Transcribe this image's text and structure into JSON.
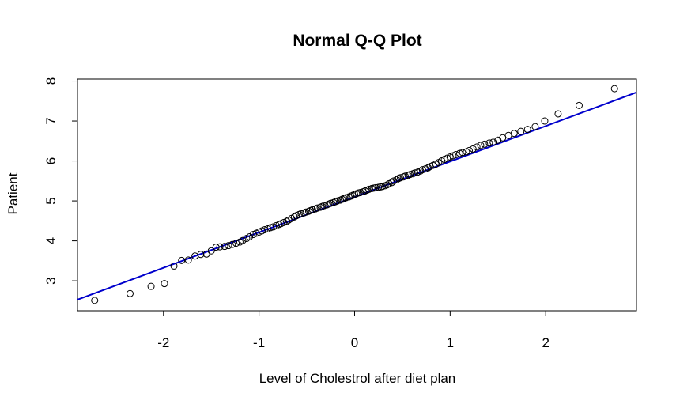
{
  "chart_data": {
    "type": "scatter",
    "title": "Normal Q-Q Plot",
    "xlabel": "Level of Cholestrol after diet plan",
    "ylabel": "Patient",
    "xlim": [
      -2.9,
      2.95
    ],
    "ylim": [
      2.25,
      8.05
    ],
    "x_ticks": [
      -2,
      -1,
      0,
      1,
      2
    ],
    "y_ticks": [
      3,
      4,
      5,
      6,
      7,
      8
    ],
    "grid": false,
    "legend": "none",
    "point_color": "#000000",
    "line_color": "#0000cc",
    "reference_line": {
      "intercept": 5.1,
      "slope": 0.887
    },
    "points": [
      [
        -2.72,
        2.51
      ],
      [
        -2.35,
        2.68
      ],
      [
        -2.13,
        2.86
      ],
      [
        -1.99,
        2.93
      ],
      [
        -1.89,
        3.37
      ],
      [
        -1.81,
        3.51
      ],
      [
        -1.74,
        3.52
      ],
      [
        -1.67,
        3.62
      ],
      [
        -1.61,
        3.66
      ],
      [
        -1.55,
        3.67
      ],
      [
        -1.5,
        3.75
      ],
      [
        -1.45,
        3.84
      ],
      [
        -1.41,
        3.85
      ],
      [
        -1.36,
        3.86
      ],
      [
        -1.32,
        3.88
      ],
      [
        -1.28,
        3.91
      ],
      [
        -1.24,
        3.94
      ],
      [
        -1.2,
        3.97
      ],
      [
        -1.17,
        4.01
      ],
      [
        -1.13,
        4.06
      ],
      [
        -1.1,
        4.1
      ],
      [
        -1.06,
        4.16
      ],
      [
        -1.03,
        4.19
      ],
      [
        -1.0,
        4.22
      ],
      [
        -0.97,
        4.25
      ],
      [
        -0.94,
        4.28
      ],
      [
        -0.91,
        4.3
      ],
      [
        -0.88,
        4.33
      ],
      [
        -0.85,
        4.35
      ],
      [
        -0.82,
        4.38
      ],
      [
        -0.79,
        4.41
      ],
      [
        -0.77,
        4.43
      ],
      [
        -0.74,
        4.46
      ],
      [
        -0.71,
        4.49
      ],
      [
        -0.69,
        4.52
      ],
      [
        -0.66,
        4.56
      ],
      [
        -0.63,
        4.6
      ],
      [
        -0.61,
        4.63
      ],
      [
        -0.58,
        4.66
      ],
      [
        -0.56,
        4.68
      ],
      [
        -0.53,
        4.7
      ],
      [
        -0.51,
        4.72
      ],
      [
        -0.48,
        4.74
      ],
      [
        -0.46,
        4.76
      ],
      [
        -0.44,
        4.78
      ],
      [
        -0.41,
        4.8
      ],
      [
        -0.39,
        4.82
      ],
      [
        -0.36,
        4.84
      ],
      [
        -0.34,
        4.86
      ],
      [
        -0.32,
        4.88
      ],
      [
        -0.29,
        4.9
      ],
      [
        -0.27,
        4.92
      ],
      [
        -0.25,
        4.94
      ],
      [
        -0.22,
        4.96
      ],
      [
        -0.2,
        4.98
      ],
      [
        -0.18,
        5.0
      ],
      [
        -0.15,
        5.02
      ],
      [
        -0.13,
        5.04
      ],
      [
        -0.11,
        5.06
      ],
      [
        -0.09,
        5.08
      ],
      [
        -0.06,
        5.1
      ],
      [
        -0.04,
        5.12
      ],
      [
        -0.02,
        5.14
      ],
      [
        0.0,
        5.16
      ],
      [
        0.02,
        5.18
      ],
      [
        0.04,
        5.2
      ],
      [
        0.06,
        5.21
      ],
      [
        0.09,
        5.23
      ],
      [
        0.11,
        5.25
      ],
      [
        0.13,
        5.27
      ],
      [
        0.15,
        5.29
      ],
      [
        0.18,
        5.31
      ],
      [
        0.2,
        5.32
      ],
      [
        0.22,
        5.33
      ],
      [
        0.25,
        5.34
      ],
      [
        0.27,
        5.35
      ],
      [
        0.29,
        5.36
      ],
      [
        0.32,
        5.38
      ],
      [
        0.34,
        5.4
      ],
      [
        0.36,
        5.43
      ],
      [
        0.39,
        5.46
      ],
      [
        0.41,
        5.5
      ],
      [
        0.44,
        5.53
      ],
      [
        0.46,
        5.56
      ],
      [
        0.48,
        5.58
      ],
      [
        0.51,
        5.6
      ],
      [
        0.53,
        5.62
      ],
      [
        0.56,
        5.64
      ],
      [
        0.58,
        5.66
      ],
      [
        0.61,
        5.68
      ],
      [
        0.63,
        5.7
      ],
      [
        0.66,
        5.72
      ],
      [
        0.69,
        5.75
      ],
      [
        0.71,
        5.78
      ],
      [
        0.74,
        5.8
      ],
      [
        0.77,
        5.83
      ],
      [
        0.79,
        5.86
      ],
      [
        0.82,
        5.89
      ],
      [
        0.85,
        5.92
      ],
      [
        0.88,
        5.96
      ],
      [
        0.91,
        6.0
      ],
      [
        0.94,
        6.04
      ],
      [
        0.97,
        6.07
      ],
      [
        1.0,
        6.1
      ],
      [
        1.03,
        6.13
      ],
      [
        1.06,
        6.16
      ],
      [
        1.1,
        6.19
      ],
      [
        1.13,
        6.21
      ],
      [
        1.17,
        6.23
      ],
      [
        1.2,
        6.26
      ],
      [
        1.24,
        6.3
      ],
      [
        1.28,
        6.35
      ],
      [
        1.32,
        6.39
      ],
      [
        1.36,
        6.42
      ],
      [
        1.41,
        6.45
      ],
      [
        1.45,
        6.47
      ],
      [
        1.5,
        6.52
      ],
      [
        1.55,
        6.58
      ],
      [
        1.61,
        6.64
      ],
      [
        1.67,
        6.69
      ],
      [
        1.74,
        6.74
      ],
      [
        1.81,
        6.79
      ],
      [
        1.89,
        6.86
      ],
      [
        1.99,
        7.0
      ],
      [
        2.13,
        7.18
      ],
      [
        2.35,
        7.39
      ],
      [
        2.72,
        7.81
      ]
    ]
  }
}
